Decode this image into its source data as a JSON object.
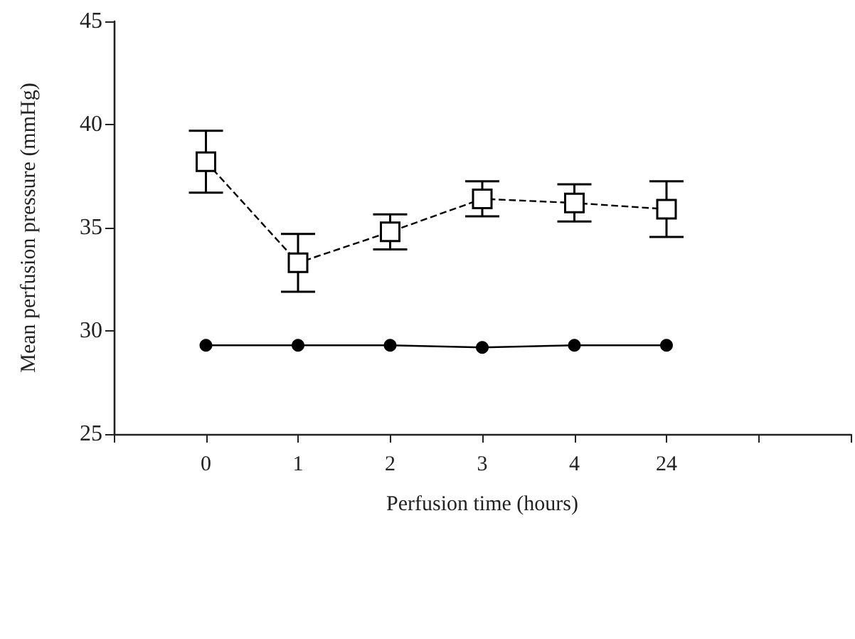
{
  "chart_data": {
    "type": "line",
    "xlabel": "Perfusion time (hours)",
    "ylabel": "Mean perfusion pressure (mmHg)",
    "categories": [
      null,
      "0",
      "1",
      "2",
      "3",
      "4",
      "24",
      null,
      null
    ],
    "series": [
      {
        "color": "#000000",
        "marker": "square",
        "line_style": "dashed",
        "values": [
          null,
          38.2,
          33.3,
          34.8,
          36.4,
          36.2,
          35.9,
          null,
          null
        ],
        "errors": [
          null,
          1.5,
          1.4,
          0.85,
          0.85,
          0.9,
          1.35,
          null,
          null
        ]
      },
      {
        "color": "#000000",
        "marker": "circle",
        "line_style": "solid",
        "values": [
          null,
          29.3,
          29.3,
          29.3,
          29.2,
          29.3,
          29.3,
          null,
          null
        ]
      }
    ],
    "ylim": [
      25,
      45
    ],
    "yticks": [
      25,
      30,
      35,
      40,
      45
    ],
    "grid": false
  }
}
